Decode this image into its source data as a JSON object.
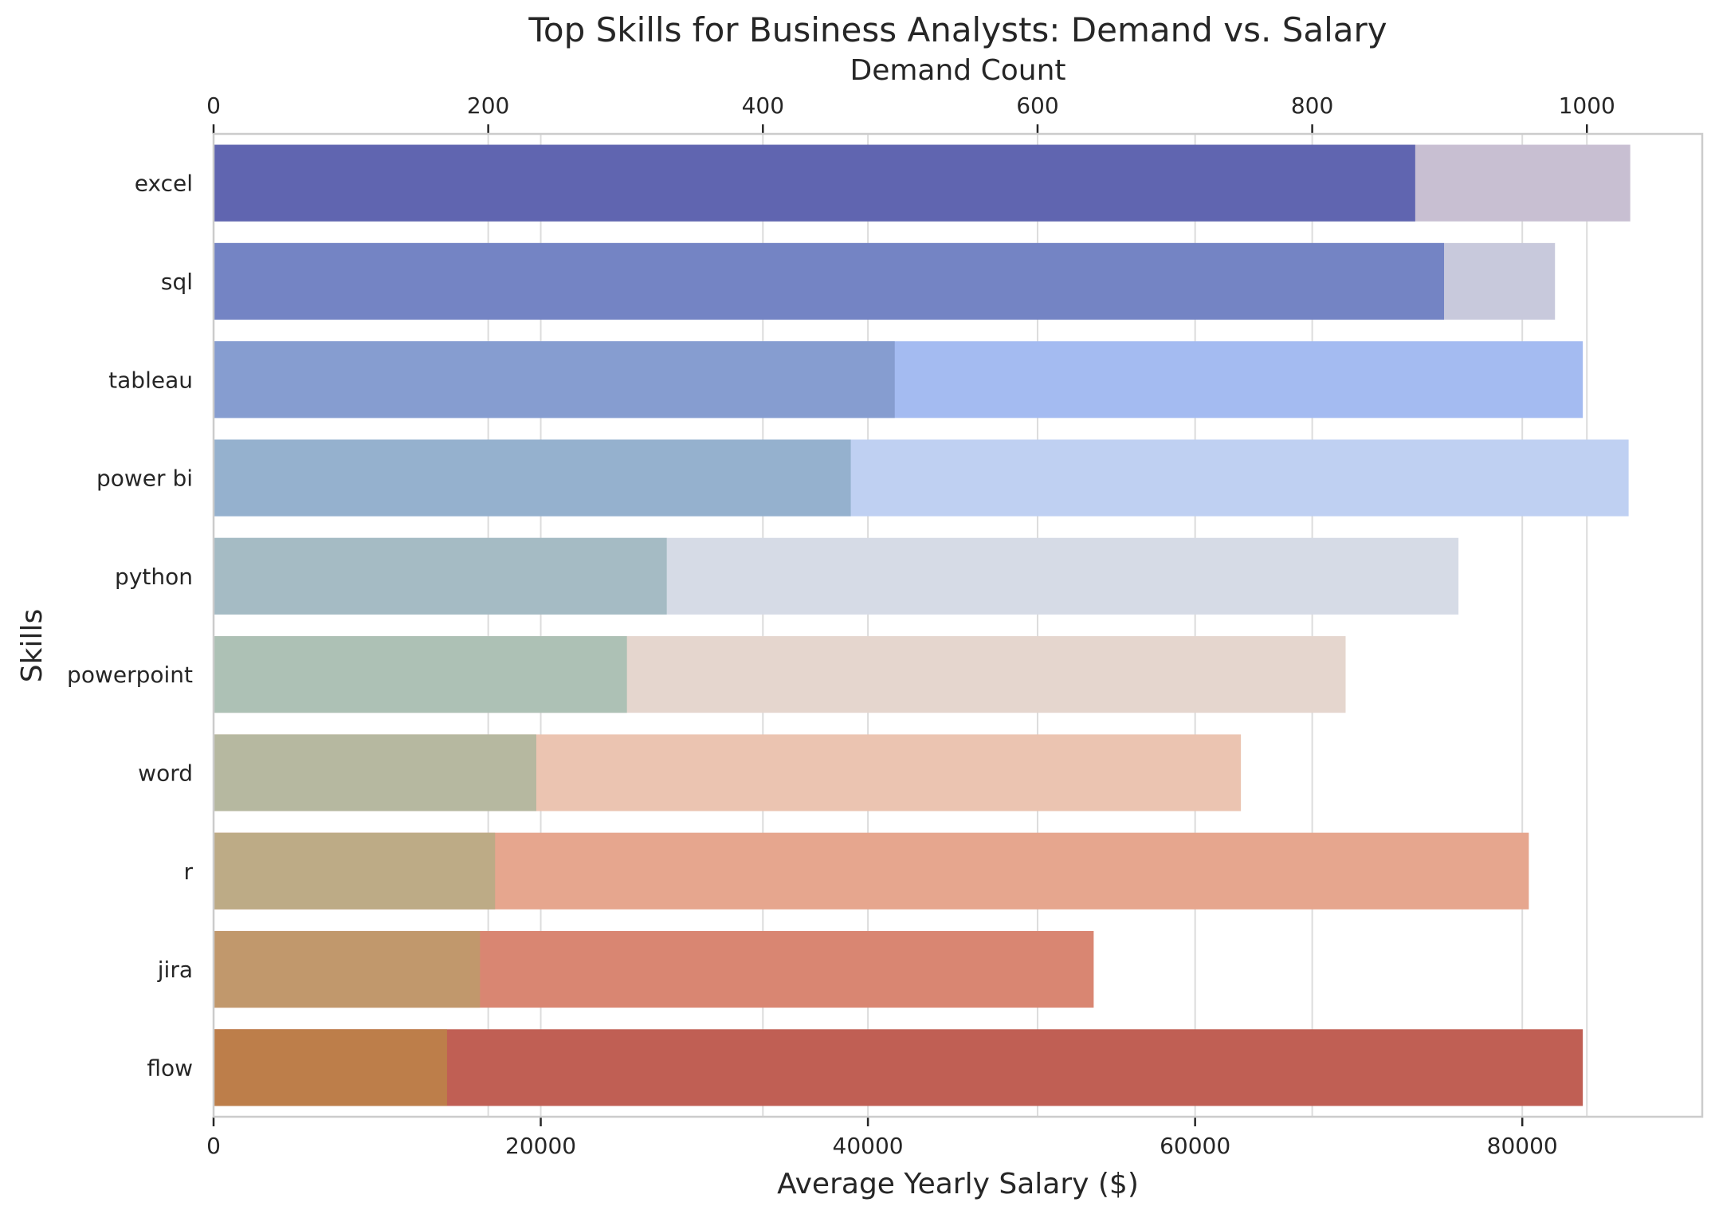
{
  "chart_data": {
    "type": "bar",
    "orientation": "horizontal",
    "title": "Top Skills for Business Analysts: Demand vs. Salary",
    "ylabel": "Skills",
    "categories": [
      "excel",
      "sql",
      "tableau",
      "power bi",
      "python",
      "powerpoint",
      "word",
      "r",
      "jira",
      "flow"
    ],
    "salary_axis": {
      "label": "Average Yearly Salary ($)",
      "position": "bottom",
      "lim": [
        0,
        91000
      ],
      "ticks": [
        0,
        20000,
        40000,
        60000,
        80000
      ]
    },
    "demand_axis": {
      "label": "Demand Count",
      "position": "top",
      "lim": [
        0,
        1084
      ],
      "ticks": [
        0,
        200,
        400,
        600,
        800,
        1000
      ]
    },
    "grid": true,
    "series": [
      {
        "name": "Average Yearly Salary ($)",
        "axis": "bottom",
        "values": [
          86600,
          82000,
          83700,
          86500,
          76100,
          69200,
          62800,
          80400,
          53800,
          83700
        ],
        "colors": [
          "#c8bfd2",
          "#c8c9dc",
          "#a4bbf1",
          "#bfd0f2",
          "#d6dbe6",
          "#e5d6ce",
          "#ebc4b1",
          "#e6a68e",
          "#d98672",
          "#c05f54"
        ]
      },
      {
        "name": "Demand Count",
        "axis": "top",
        "values": [
          875,
          896,
          496,
          464,
          330,
          301,
          235,
          205,
          194,
          170
        ],
        "colors": [
          "#6065b0",
          "#7484c4",
          "#869dd0",
          "#95b1ce",
          "#a5bbc4",
          "#adc1b5",
          "#b6b8a0",
          "#bdab86",
          "#c1986c",
          "#bd7e4a"
        ]
      }
    ]
  }
}
